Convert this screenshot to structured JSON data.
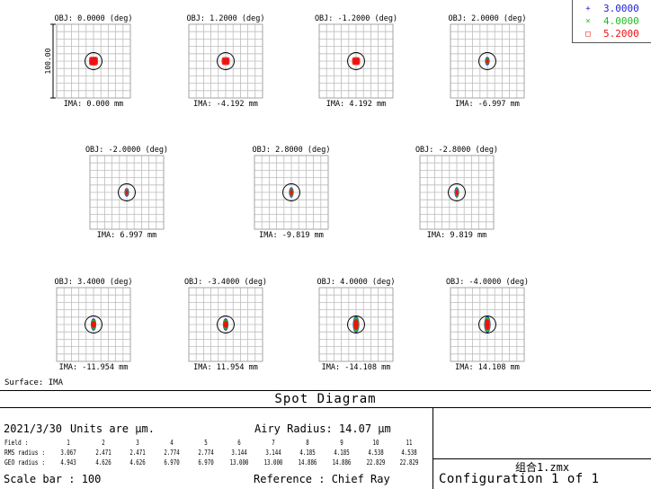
{
  "window": {
    "title": "Spot Diagram"
  },
  "legend": {
    "entries": [
      {
        "marker": "+",
        "label": "3.0000",
        "color": "#1f1fd6"
      },
      {
        "marker": "×",
        "label": "4.0000",
        "color": "#22bb22"
      },
      {
        "marker": "□",
        "label": "5.2000",
        "color": "#ee1111"
      }
    ]
  },
  "plot": {
    "scale_label": "100.00",
    "cells": [
      {
        "obj": "OBJ: 0.0000 (deg)",
        "ima": "IMA: 0.000 mm",
        "spot": {
          "shape": "round",
          "w": 8,
          "h": 8
        }
      },
      {
        "obj": "OBJ: 1.2000 (deg)",
        "ima": "IMA: -4.192 mm",
        "spot": {
          "shape": "round",
          "w": 7,
          "h": 7
        }
      },
      {
        "obj": "OBJ: -1.2000 (deg)",
        "ima": "IMA: 4.192 mm",
        "spot": {
          "shape": "round",
          "w": 7,
          "h": 7
        }
      },
      {
        "obj": "OBJ: 2.0000 (deg)",
        "ima": "IMA: -6.997 mm",
        "spot": {
          "shape": "oval",
          "w": 4,
          "h": 7
        }
      },
      {
        "obj": "OBJ: -2.0000 (deg)",
        "ima": "IMA: 6.997 mm",
        "spot": {
          "shape": "oval",
          "w": 4,
          "h": 7
        }
      },
      {
        "obj": "OBJ: 2.8000 (deg)",
        "ima": "IMA: -9.819 mm",
        "spot": {
          "shape": "oval",
          "w": 4,
          "h": 9
        }
      },
      {
        "obj": "OBJ: -2.8000 (deg)",
        "ima": "IMA: 9.819 mm",
        "spot": {
          "shape": "oval",
          "w": 4,
          "h": 9
        }
      },
      {
        "obj": "OBJ: 3.4000 (deg)",
        "ima": "IMA: -11.954 mm",
        "spot": {
          "shape": "oval",
          "w": 5,
          "h": 11
        }
      },
      {
        "obj": "OBJ: -3.4000 (deg)",
        "ima": "IMA: 11.954 mm",
        "spot": {
          "shape": "oval",
          "w": 5,
          "h": 11
        }
      },
      {
        "obj": "OBJ: 4.0000 (deg)",
        "ima": "IMA: -14.108 mm",
        "spot": {
          "shape": "oval",
          "w": 6,
          "h": 16
        }
      },
      {
        "obj": "OBJ: -4.0000 (deg)",
        "ima": "IMA: 14.108 mm",
        "spot": {
          "shape": "oval",
          "w": 6,
          "h": 16
        }
      }
    ]
  },
  "surface_label": "Surface: IMA",
  "footer": {
    "title": "Spot Diagram",
    "date": "2021/3/30",
    "units": "Units are µm.",
    "airy": "Airy Radius: 14.07 µm",
    "table": {
      "labels": [
        "Field      :",
        "RMS radius :",
        "GEO radius :"
      ],
      "field": [
        "1",
        "2",
        "3",
        "4",
        "5",
        "6",
        "7",
        "8",
        "9",
        "10",
        "11"
      ],
      "rms": [
        "3.067",
        "2.471",
        "2.471",
        "2.774",
        "2.774",
        "3.144",
        "3.144",
        "4.185",
        "4.185",
        "4.538",
        "4.538"
      ],
      "geo": [
        "4.943",
        "4.626",
        "4.626",
        "6.970",
        "6.970",
        "13.000",
        "13.000",
        "14.886",
        "14.886",
        "22.829",
        "22.829"
      ]
    },
    "scale_bar": "Scale bar  : 100",
    "reference": "Reference  : Chief Ray",
    "filename": "组合1.zmx",
    "configuration": "Configuration 1 of 1"
  }
}
